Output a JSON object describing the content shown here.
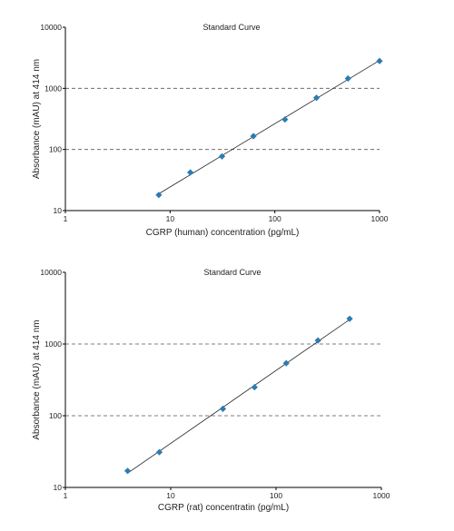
{
  "chart_data": [
    {
      "type": "scatter",
      "title": "Standard Curve",
      "xlabel": "CGRP (human) concentration (pg/mL)",
      "ylabel": "Absorbance (mAU) at 414 nm",
      "x_scale": "log",
      "y_scale": "log",
      "xlim": [
        1,
        1000
      ],
      "ylim": [
        10,
        10000
      ],
      "x_ticks": [
        "1",
        "10",
        "100",
        "1000"
      ],
      "y_ticks": [
        "10",
        "100",
        "1000",
        "10000"
      ],
      "gridlines_y": [
        100,
        1000
      ],
      "grid": "dashed horizontal at 100 and 1000",
      "legend": "none",
      "marker": "diamond",
      "marker_color": "#2A7CB3",
      "fit_line": true,
      "points": [
        {
          "x": 7.8,
          "y": 18
        },
        {
          "x": 15.6,
          "y": 42
        },
        {
          "x": 31.3,
          "y": 77
        },
        {
          "x": 62.5,
          "y": 165
        },
        {
          "x": 125,
          "y": 310
        },
        {
          "x": 250,
          "y": 700
        },
        {
          "x": 500,
          "y": 1450
        },
        {
          "x": 1000,
          "y": 2800
        }
      ]
    },
    {
      "type": "scatter",
      "title": "Standard Curve",
      "xlabel": "CGRP (rat) concentratin (pg/mL)",
      "ylabel": "Absorbance (mAU) at 414 nm",
      "x_scale": "log",
      "y_scale": "log",
      "xlim": [
        1,
        1000
      ],
      "ylim": [
        10,
        10000
      ],
      "x_ticks": [
        "1",
        "10",
        "100",
        "1000"
      ],
      "y_ticks": [
        "10",
        "100",
        "1000",
        "10000"
      ],
      "gridlines_y": [
        100,
        1000
      ],
      "grid": "dashed horizontal at 100 and 1000",
      "legend": "none",
      "marker": "diamond",
      "marker_color": "#2A7CB3",
      "fit_line": true,
      "points": [
        {
          "x": 3.9,
          "y": 17
        },
        {
          "x": 7.8,
          "y": 31
        },
        {
          "x": 31.3,
          "y": 125
        },
        {
          "x": 62.5,
          "y": 250
        },
        {
          "x": 125,
          "y": 540
        },
        {
          "x": 250,
          "y": 1120
        },
        {
          "x": 500,
          "y": 2250
        }
      ]
    }
  ]
}
